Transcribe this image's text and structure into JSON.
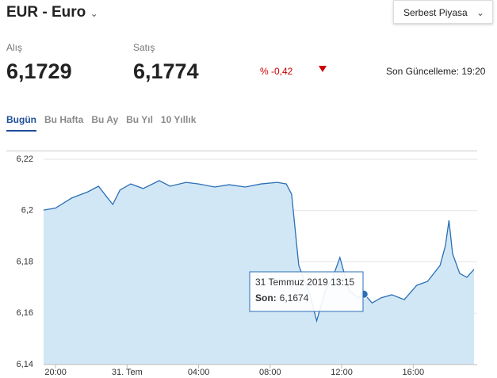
{
  "header": {
    "title": "EUR - Euro",
    "market": "Serbest Piyasa"
  },
  "quote": {
    "buy_label": "Alış",
    "buy": "6,1729",
    "sell_label": "Satış",
    "sell": "6,1774",
    "change": "% -0,42",
    "updated": "Son Güncelleme: 19:20"
  },
  "tabs": [
    "Bugün",
    "Bu Hafta",
    "Bu Ay",
    "Bu Yıl",
    "10 Yıllık"
  ],
  "chart_data": {
    "type": "area",
    "x": [
      19.33,
      20,
      20.9,
      21.8,
      22.4,
      22.9,
      23.2,
      23.6,
      24.2,
      24.9,
      25.8,
      26.4,
      27.3,
      28,
      28.9,
      29.7,
      30.6,
      31.5,
      32.4,
      32.9,
      33.2,
      33.4,
      33.6,
      34.2,
      34.6,
      35.1,
      35.5,
      35.9,
      36.4,
      36.9,
      37.3,
      37.7,
      38.2,
      38.8,
      39.5,
      40.2,
      40.8,
      41.5,
      41.8,
      42.0,
      42.2,
      42.6,
      43.0,
      43.4
    ],
    "series": [
      {
        "name": "EUR",
        "color": "#2a6fb7",
        "values": [
          6.2002,
          6.201,
          6.2049,
          6.2073,
          6.2095,
          6.205,
          6.2024,
          6.208,
          6.2104,
          6.2086,
          6.2117,
          6.2095,
          6.211,
          6.2104,
          6.2092,
          6.2101,
          6.2092,
          6.2104,
          6.211,
          6.2104,
          6.2064,
          6.1925,
          6.1786,
          6.1678,
          6.157,
          6.1691,
          6.174,
          6.1817,
          6.1691,
          6.166,
          6.1672,
          6.164,
          6.166,
          6.1672,
          6.1653,
          6.1709,
          6.1724,
          6.1786,
          6.1863,
          6.1962,
          6.1832,
          6.1755,
          6.174,
          6.1771
        ]
      }
    ],
    "xlim": [
      19.33,
      43.4
    ],
    "xticks": [
      {
        "value": 20,
        "label": "20:00"
      },
      {
        "value": 24,
        "label": "31. Tem"
      },
      {
        "value": 28,
        "label": "04:00"
      },
      {
        "value": 32,
        "label": "08:00"
      },
      {
        "value": 36,
        "label": "12:00"
      },
      {
        "value": 40,
        "label": "16:00"
      }
    ],
    "ylim": [
      6.14,
      6.22
    ],
    "yticks": [
      {
        "value": 6.14,
        "label": "6,14"
      },
      {
        "value": 6.16,
        "label": "6,16"
      },
      {
        "value": 6.18,
        "label": "6,18"
      },
      {
        "value": 6.2,
        "label": "6,2"
      },
      {
        "value": 6.22,
        "label": "6,22"
      }
    ],
    "grid": true,
    "tooltip": {
      "x": 37.25,
      "date": "31 Temmuz 2019 13:15",
      "name": "Son:",
      "value": 6.1674,
      "value_label": "6,1674"
    }
  }
}
